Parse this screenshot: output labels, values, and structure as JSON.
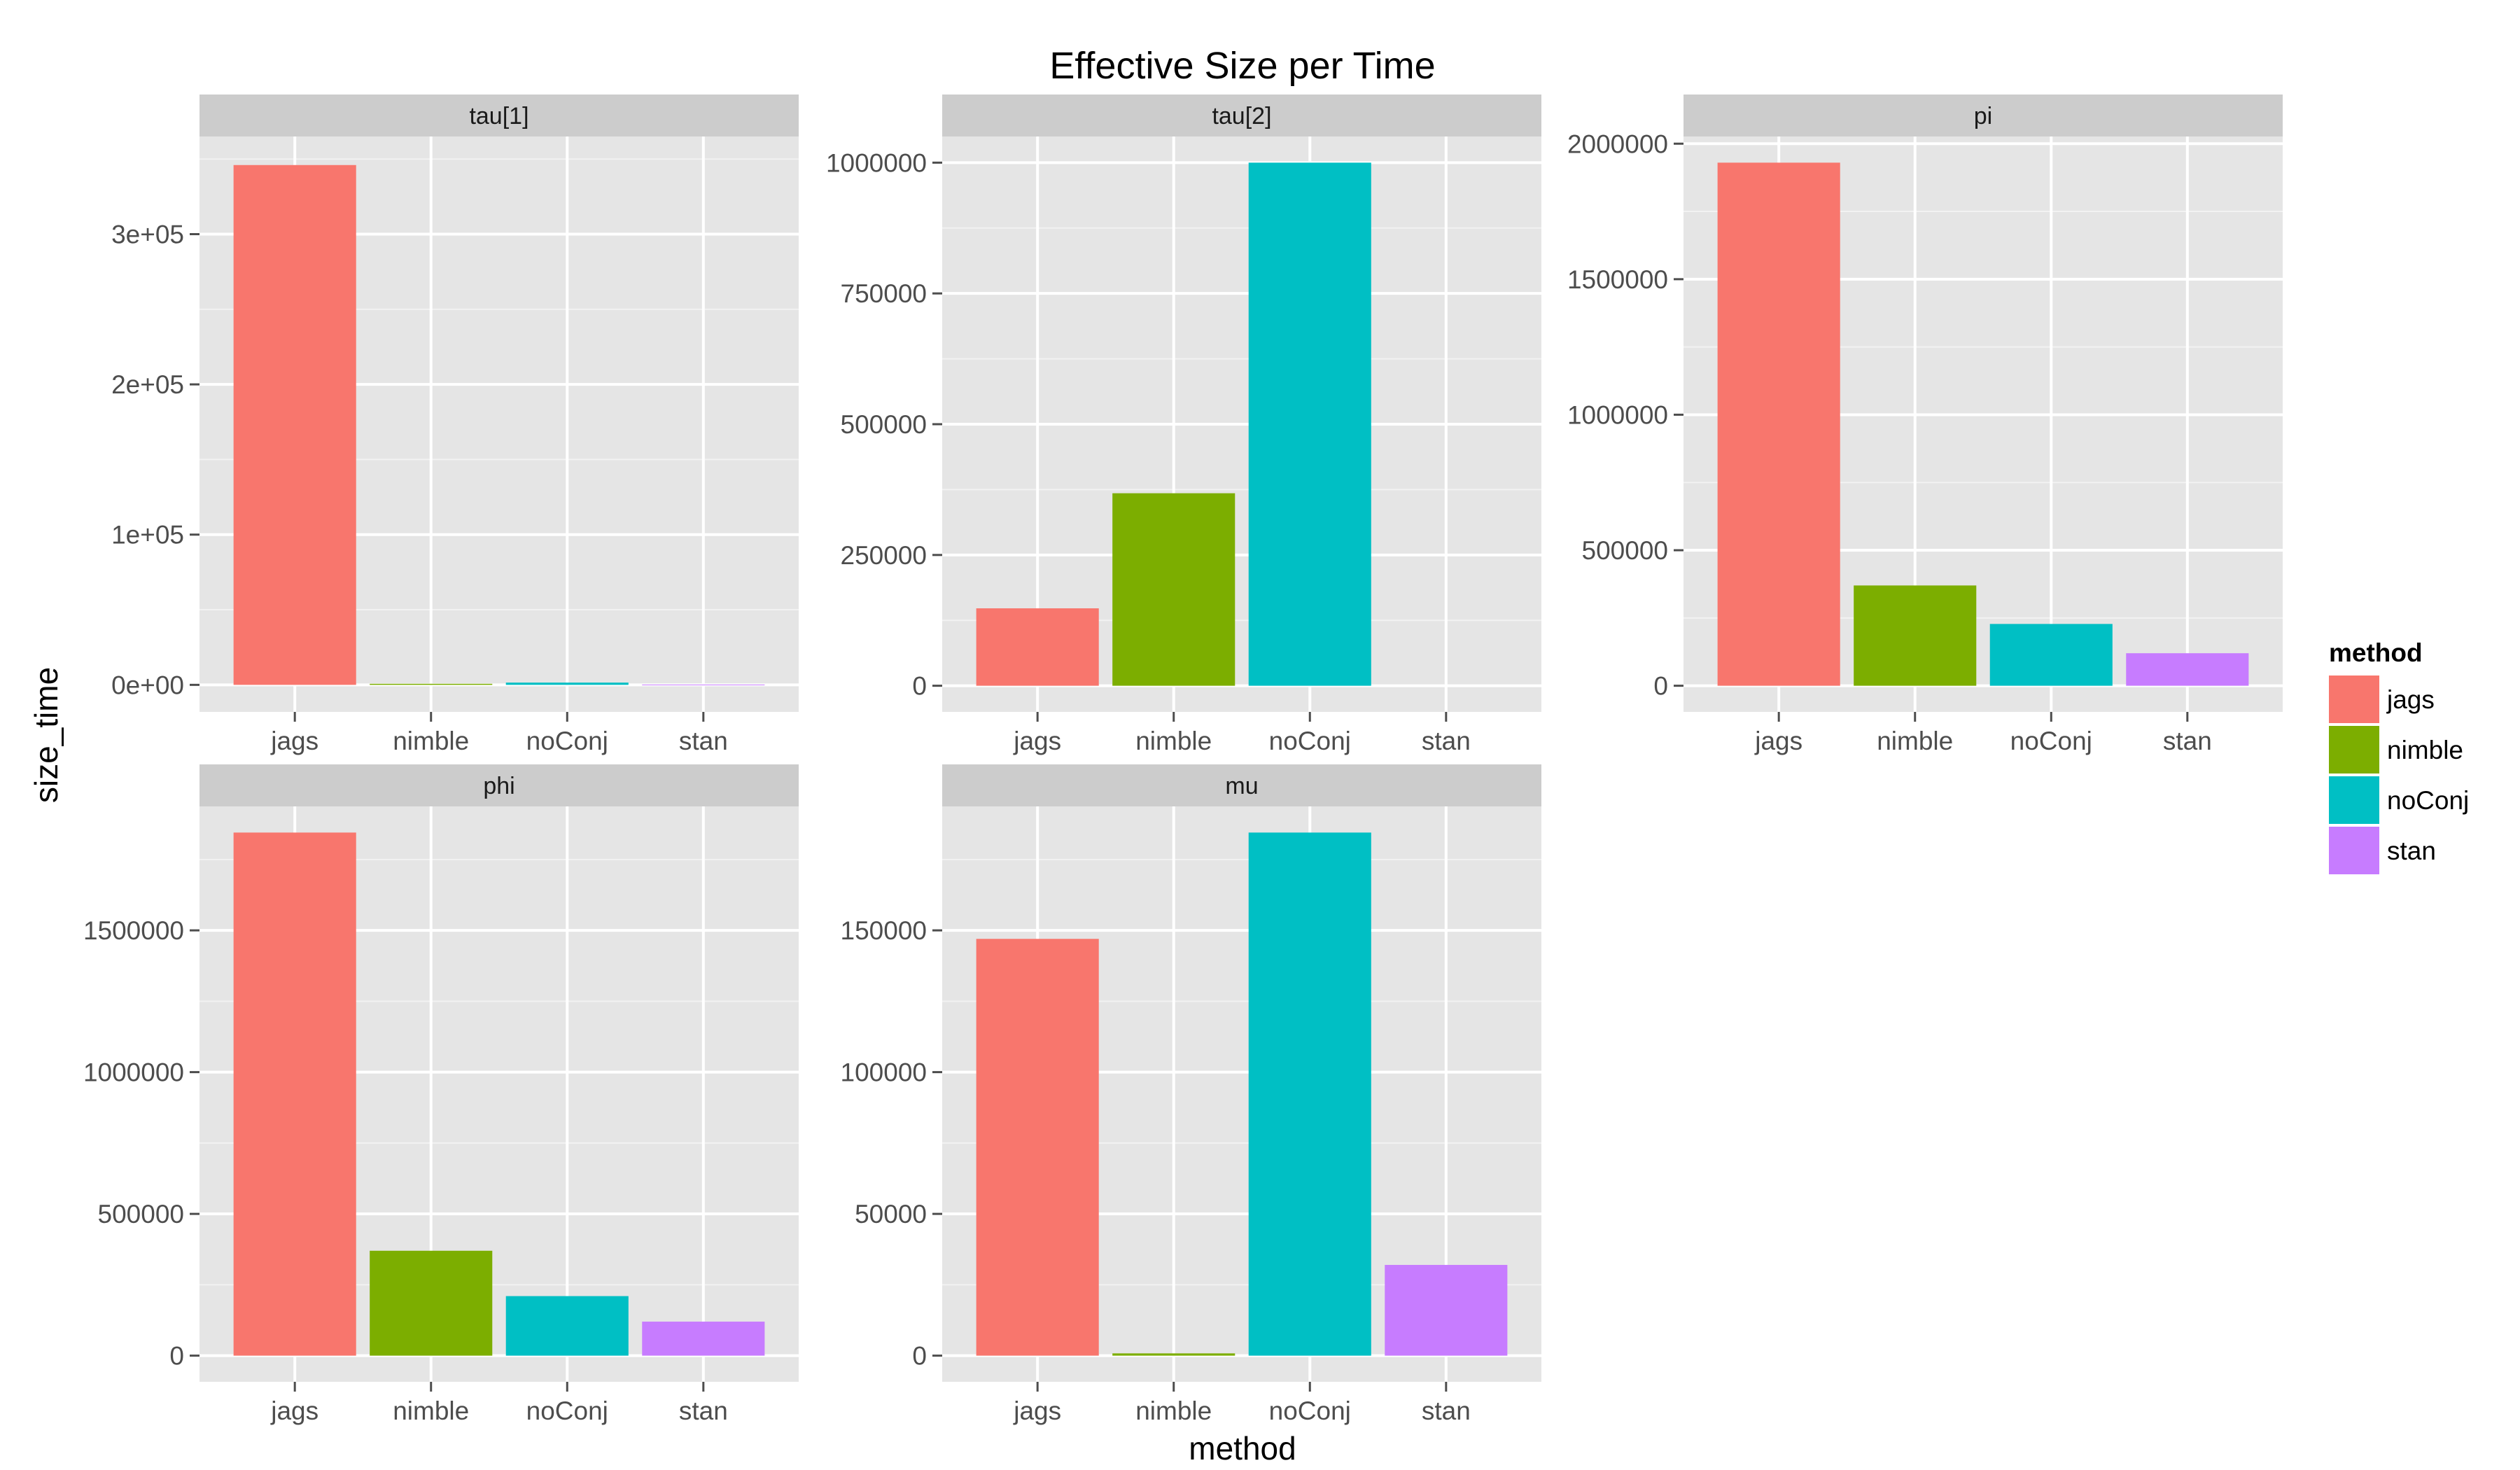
{
  "chart_data": {
    "type": "bar",
    "title": "Effective Size per Time",
    "xlabel": "method",
    "ylabel": "size_time",
    "categories": [
      "jags",
      "nimble",
      "noConj",
      "stan"
    ],
    "legend": {
      "title": "method",
      "position": "right",
      "entries": [
        {
          "label": "jags",
          "color": "#F8766D"
        },
        {
          "label": "nimble",
          "color": "#7CAE00"
        },
        {
          "label": "noConj",
          "color": "#00BFC4"
        },
        {
          "label": "stan",
          "color": "#C77CFF"
        }
      ]
    },
    "grid": true,
    "panels": [
      {
        "label": "tau[1]",
        "values": [
          346000,
          700,
          1500,
          200
        ],
        "ylim": [
          -18000,
          365000
        ],
        "yticks": [
          0,
          100000,
          200000,
          300000
        ],
        "yticklabels": [
          "0e+00",
          "1e+05",
          "2e+05",
          "3e+05"
        ]
      },
      {
        "label": "tau[2]",
        "values": [
          148000,
          368000,
          1000000,
          0
        ],
        "ylim": [
          -50000,
          1050000
        ],
        "yticks": [
          0,
          250000,
          500000,
          750000,
          1000000
        ],
        "yticklabels": [
          "0",
          "250000",
          "500000",
          "750000",
          "1000000"
        ]
      },
      {
        "label": "pi",
        "values": [
          1930000,
          370000,
          228000,
          120000
        ],
        "ylim": [
          -96500,
          2026500
        ],
        "yticks": [
          0,
          500000,
          1000000,
          1500000,
          2000000
        ],
        "yticklabels": [
          "0",
          "500000",
          "1000000",
          "1500000",
          "2000000"
        ]
      },
      {
        "label": "phi",
        "values": [
          1845000,
          370000,
          210000,
          120000
        ],
        "ylim": [
          -92250,
          1937250
        ],
        "yticks": [
          0,
          500000,
          1000000,
          1500000
        ],
        "yticklabels": [
          "0",
          "500000",
          "1000000",
          "1500000"
        ]
      },
      {
        "label": "mu",
        "values": [
          147000,
          800,
          184500,
          32000
        ],
        "ylim": [
          -9225,
          193725
        ],
        "yticks": [
          0,
          50000,
          100000,
          150000
        ],
        "yticklabels": [
          "0",
          "50000",
          "100000",
          "150000"
        ]
      }
    ]
  }
}
